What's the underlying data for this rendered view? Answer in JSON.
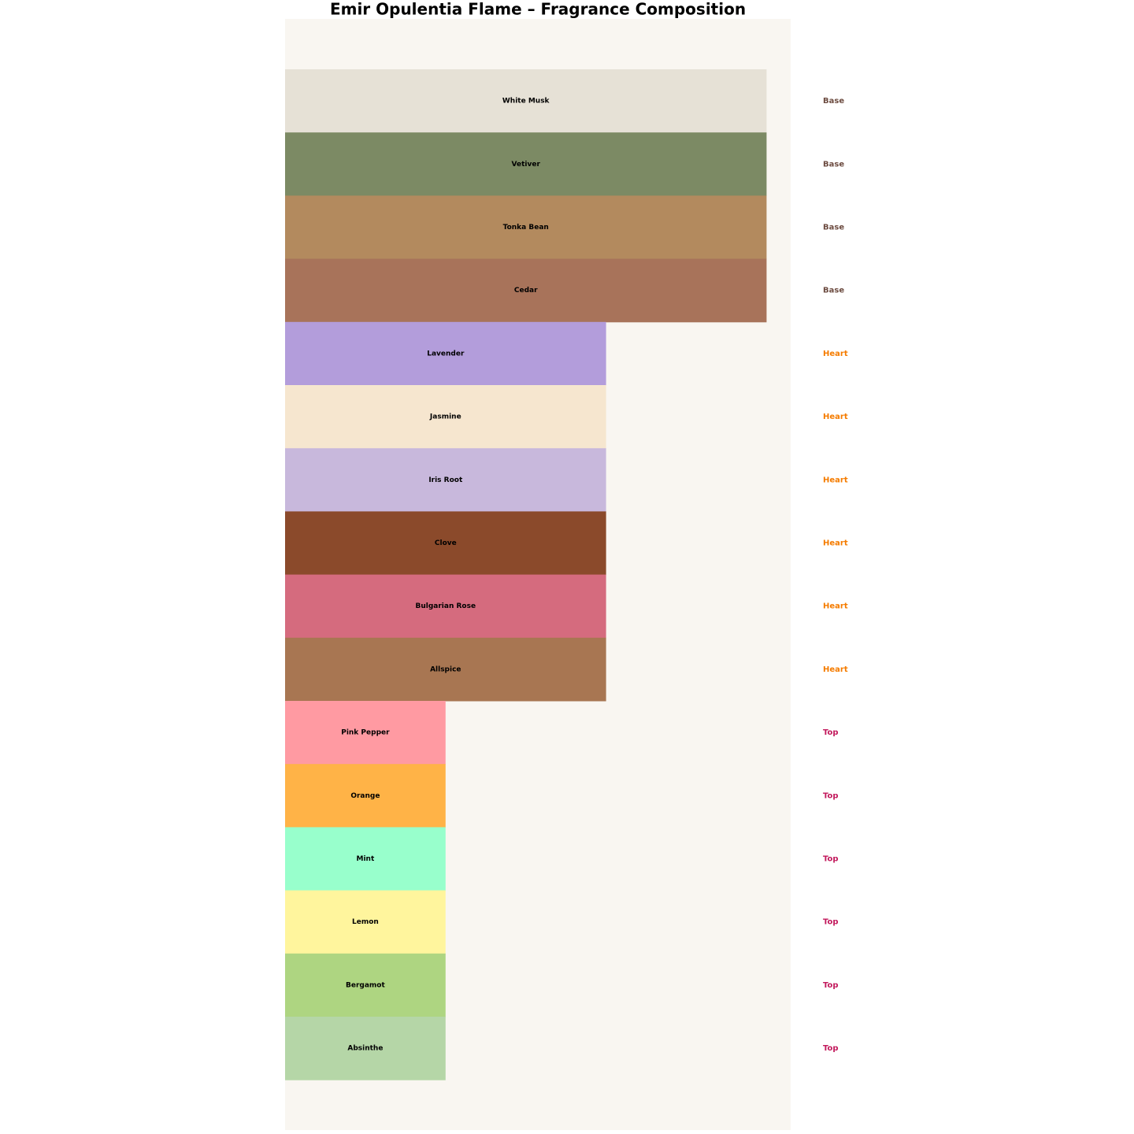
{
  "chart_data": {
    "type": "barh",
    "title": "Emir Opulentia Flame – Fragrance Composition",
    "categories": [
      "White Musk",
      "Vetiver",
      "Tonka Bean",
      "Cedar",
      "Lavender",
      "Jasmine",
      "Iris Root",
      "Clove",
      "Bulgarian Rose",
      "Allspice",
      "Pink Pepper",
      "Orange",
      "Mint",
      "Lemon",
      "Bergamot",
      "Absinthe"
    ],
    "values": [
      3,
      3,
      3,
      3,
      2,
      2,
      2,
      2,
      2,
      2,
      1,
      1,
      1,
      1,
      1,
      1
    ],
    "colors": [
      "#e6e1d6",
      "#7c8a64",
      "#b38a5e",
      "#a8735a",
      "#b39ddb",
      "#f6e6cf",
      "#c8b8dc",
      "#8b4a2b",
      "#d56b7e",
      "#a87652",
      "#ff9aa2",
      "#ffb347",
      "#98ffcc",
      "#fff59d",
      "#aed581",
      "#b5d6a7"
    ],
    "layers": [
      "Base",
      "Base",
      "Base",
      "Base",
      "Heart",
      "Heart",
      "Heart",
      "Heart",
      "Heart",
      "Heart",
      "Top",
      "Top",
      "Top",
      "Top",
      "Top",
      "Top"
    ],
    "layer_colors": {
      "Base": "#6d4c41",
      "Heart": "#f57c00",
      "Top": "#c2185b"
    },
    "xlim": [
      0,
      3.15
    ]
  }
}
